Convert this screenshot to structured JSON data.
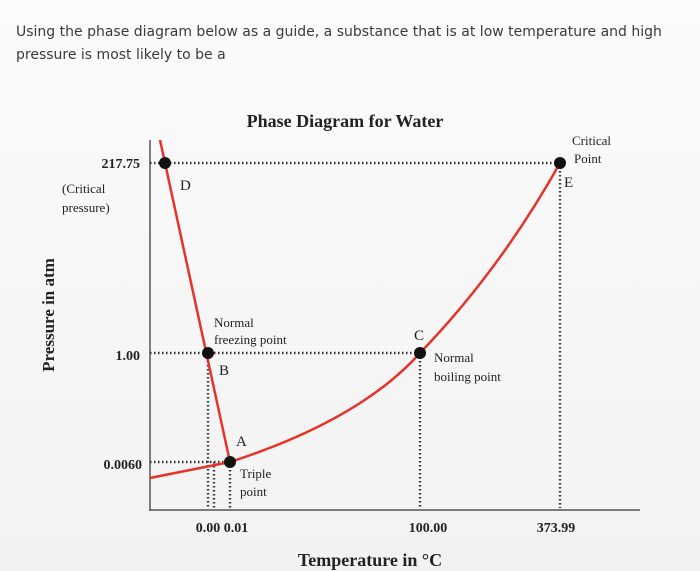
{
  "question": [
    "Using the phase diagram below as a guide, a substance that is at low temperature and high",
    "pressure is most likely to be a"
  ],
  "diagram": {
    "title": "Phase Diagram for Water",
    "y_axis_label": "Pressure in atm",
    "x_axis_label": "Temperature in °C",
    "y_labels": [
      "217.75",
      "1.00",
      "0.0060"
    ],
    "critical_pressure_note": [
      "(Critical",
      "pressure)"
    ],
    "x_labels": [
      "0.00 0.01",
      "100.00",
      "373.99"
    ],
    "critical_point_note": [
      "Critical",
      "Point"
    ],
    "freezing_note": [
      "Normal",
      "freezing point"
    ],
    "boiling_note": [
      "Normal",
      "boiling point"
    ],
    "triple_note": [
      "Triple",
      "point"
    ],
    "point_letters": [
      "D",
      "E",
      "B",
      "C",
      "A"
    ]
  }
}
